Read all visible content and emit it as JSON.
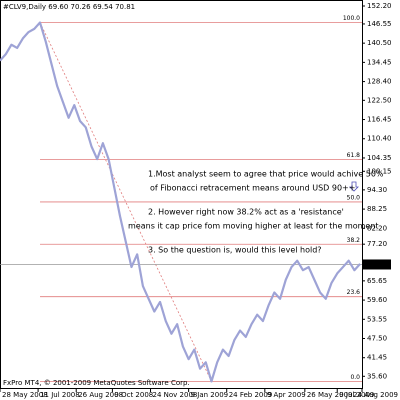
{
  "chart_data": {
    "type": "line",
    "title": "#CLV9,Daily  69.60 70.26 69.54 70.81",
    "footer": "FxPro MT4, © 2001-2009 MetaQuotes Software Corp.",
    "x": [
      0,
      6,
      12,
      18,
      24,
      30,
      36,
      42,
      48,
      54,
      60,
      66,
      72,
      78,
      84,
      90,
      96,
      102,
      108,
      114,
      120,
      126,
      132,
      138,
      144,
      150,
      156,
      162,
      168,
      174,
      180,
      186,
      192,
      198,
      204,
      210,
      216,
      222,
      228,
      234,
      240,
      246,
      252,
      258,
      264,
      270,
      276,
      282,
      288,
      294,
      300,
      306,
      312,
      318,
      324,
      330,
      336,
      342,
      348,
      354,
      360,
      366,
      372,
      378
    ],
    "series": [
      {
        "name": "#CLV9",
        "color": "#9ea3d6",
        "values": [
          135,
          137,
          140,
          139,
          142,
          144,
          145,
          147,
          141,
          134,
          127,
          122,
          117,
          121,
          116,
          114,
          108,
          104,
          109,
          104,
          95,
          86,
          78,
          70,
          74,
          64,
          60,
          56,
          59,
          53,
          49,
          52,
          45,
          41,
          44,
          38,
          40,
          34,
          40,
          44,
          42,
          47,
          50,
          48,
          52,
          55,
          53,
          58,
          62,
          60,
          66,
          70,
          72,
          69,
          70,
          66,
          62,
          60,
          65,
          68,
          70,
          72,
          69,
          71
        ]
      }
    ],
    "xlim": [
      0,
      380
    ],
    "xticks": [
      {
        "value": 0,
        "label": "28 May 2008"
      },
      {
        "value": 40,
        "label": "11 Jul 2008"
      },
      {
        "value": 80,
        "label": "26 Aug 2008"
      },
      {
        "value": 118,
        "label": "9 Oct 2008"
      },
      {
        "value": 158,
        "label": "24 Nov 2008"
      },
      {
        "value": 198,
        "label": "9 Jan 2009"
      },
      {
        "value": 238,
        "label": "24 Feb 2009"
      },
      {
        "value": 278,
        "label": "9 Apr 2009"
      },
      {
        "value": 320,
        "label": "26 May 2009"
      },
      {
        "value": 354,
        "label": "9 Jul 2009"
      },
      {
        "value": 380,
        "label": "24 Aug 2009"
      }
    ],
    "ylim": [
      31.6,
      152.2
    ],
    "yticks": [
      {
        "value": 152.2,
        "label": "152.20"
      },
      146.55,
      {
        "value": 140.5,
        "label": "140.50"
      },
      134.45,
      {
        "value": 128.4,
        "label": "128.40"
      },
      {
        "value": 122.5,
        "label": "122.50"
      },
      116.45,
      {
        "value": 110.4,
        "label": "110.40"
      },
      104.35,
      100.15,
      {
        "value": 94.3,
        "label": "94.30"
      },
      88.25,
      {
        "value": 82.2,
        "label": "82.20"
      },
      {
        "value": 77.2,
        "label": "77.20"
      },
      65.65,
      {
        "value": 59.6,
        "label": "59.60"
      },
      53.55,
      {
        "value": 47.5,
        "label": "47.50"
      },
      41.45,
      {
        "value": 35.6,
        "label": "35.60"
      }
    ],
    "current_price": 70.81,
    "fib_levels": [
      {
        "value": 147,
        "label": "100.0"
      },
      {
        "value": 103.83,
        "label": "61.8"
      },
      {
        "value": 90.5,
        "label": "50.0"
      },
      {
        "value": 77.17,
        "label": "38.2"
      },
      {
        "value": 60.67,
        "label": "23.6"
      },
      {
        "value": 34,
        "label": "0.0"
      }
    ],
    "fib_color": "#e07c7c",
    "annotations": [
      "1.Most analyst seem to agree that price would achive 50%",
      "of Fibonacci retracement means around USD 90++",
      "2. However right now 38.2% act as a 'resistance'",
      "means it cap price fom moving higher at least for the moment",
      "3. So the question is, would this level hold?"
    ],
    "annotation_color": "#5050b8"
  }
}
